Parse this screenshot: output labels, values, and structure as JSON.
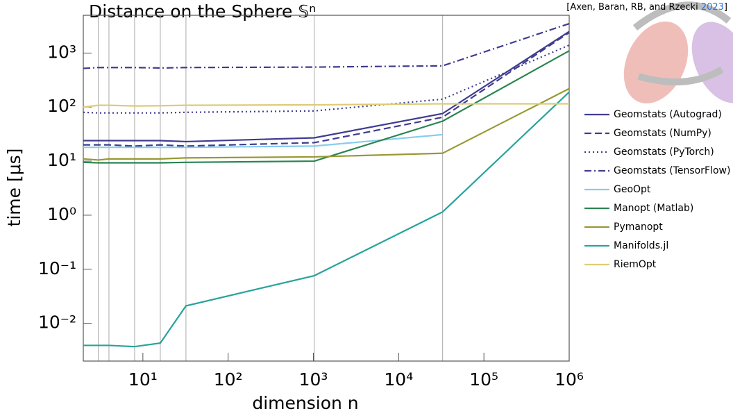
{
  "chart_data": {
    "type": "line",
    "title": "Distance on the Sphere 𝕊ⁿ",
    "citation": {
      "authors": "[Axen, Baran, RB, and Rzecki ",
      "year": "2023",
      "close": "]"
    },
    "x_label": "dimension n",
    "y_label": "time [μs]",
    "log_x": true,
    "log_y": true,
    "x": [
      2,
      3,
      4,
      8,
      16,
      32,
      1024,
      32768,
      1000000
    ],
    "xlim": [
      2,
      1000000
    ],
    "ylim": [
      0.002,
      5000
    ],
    "xticks": [
      {
        "value": 10,
        "label": "10¹"
      },
      {
        "value": 100,
        "label": "10²"
      },
      {
        "value": 1000,
        "label": "10³"
      },
      {
        "value": 10000,
        "label": "10⁴"
      },
      {
        "value": 100000,
        "label": "10⁵"
      },
      {
        "value": 1000000,
        "label": "10⁶"
      }
    ],
    "yticks": [
      {
        "value": 0.01,
        "label": "10⁻²"
      },
      {
        "value": 0.1,
        "label": "10⁻¹"
      },
      {
        "value": 1,
        "label": "10⁰"
      },
      {
        "value": 10,
        "label": "10¹"
      },
      {
        "value": 100,
        "label": "10²"
      },
      {
        "value": 1000,
        "label": "10³"
      }
    ],
    "grid_x": [
      2,
      3,
      4,
      8,
      16,
      32,
      1024,
      32768
    ],
    "legend": "right",
    "series": [
      {
        "name": "Geomstats (Autograd)",
        "color": "#3f3c8f",
        "dash": "solid",
        "values": [
          24,
          24,
          24,
          24,
          24,
          23,
          27,
          76,
          2500
        ]
      },
      {
        "name": "Geomstats (NumPy)",
        "color": "#3f3c8f",
        "dash": "dashed",
        "values": [
          20,
          20,
          20,
          19,
          20,
          19,
          22,
          65,
          2400
        ]
      },
      {
        "name": "Geomstats (PyTorch)",
        "color": "#3f3c8f",
        "dash": "dotted",
        "values": [
          80,
          78,
          78,
          78,
          78,
          80,
          85,
          140,
          1400
        ]
      },
      {
        "name": "Geomstats (TensorFlow)",
        "color": "#3f3c8f",
        "dash": "dashdot",
        "values": [
          520,
          540,
          540,
          540,
          530,
          540,
          550,
          580,
          3500
        ]
      },
      {
        "name": "GeoOpt",
        "color": "#88ccee",
        "dash": "solid",
        "values": [
          18,
          18,
          18,
          18,
          18,
          18,
          19,
          31,
          null
        ]
      },
      {
        "name": "Manopt (Matlab)",
        "color": "#2a8550",
        "dash": "solid",
        "values": [
          9.5,
          9.3,
          9.3,
          9.3,
          9.3,
          9.5,
          10,
          55,
          1100
        ]
      },
      {
        "name": "Pymanopt",
        "color": "#999933",
        "dash": "solid",
        "values": [
          11,
          10.5,
          11,
          11,
          11,
          11.5,
          12,
          14,
          220
        ]
      },
      {
        "name": "Manifolds.jl",
        "color": "#27a39a",
        "dash": "solid",
        "values": [
          0.0039,
          0.0039,
          0.0039,
          0.0037,
          0.0043,
          0.021,
          0.076,
          1.15,
          190
        ]
      },
      {
        "name": "RiemOpt",
        "color": "#ddcc77",
        "dash": "solid",
        "values": [
          100,
          108,
          108,
          105,
          106,
          108,
          110,
          115,
          115
        ]
      }
    ]
  }
}
